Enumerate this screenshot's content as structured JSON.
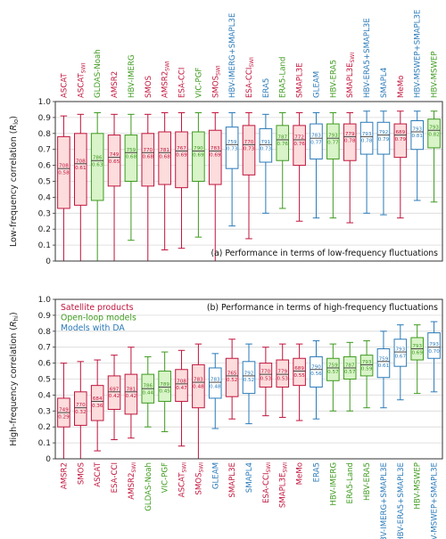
{
  "colors": {
    "satellite": "#c0143c",
    "satellite_fill": "#fcdcdc",
    "openloop": "#3e9a1f",
    "openloop_fill": "#d8f4c8",
    "da": "#2a7ab8",
    "da_fill": "#ffffff",
    "grid": "#d8d8d8",
    "median": "#333333"
  },
  "chart_data": [
    {
      "type": "box",
      "annotation": "(a) Performance in terms of low-frequency fluctuations",
      "ylabel": "Low-frequency correlation (R_lo)",
      "ylim": [
        0,
        1
      ],
      "yticks": [
        "0",
        "0.1",
        "0.2",
        "0.3",
        "0.4",
        "0.5",
        "0.6",
        "0.7",
        "0.8",
        "0.9",
        "1.0"
      ],
      "grid": true,
      "category_position": "top",
      "boxes": [
        {
          "label": "ASCAT",
          "sub": "",
          "group": "satellite",
          "n": "708",
          "median": "0.58",
          "min": 0.0,
          "q1": 0.33,
          "med": 0.58,
          "q3": 0.78,
          "max": 0.91
        },
        {
          "label": "ASCAT",
          "sub": "SWI",
          "group": "satellite",
          "n": "708",
          "median": "0.61",
          "min": 0.0,
          "q1": 0.35,
          "med": 0.61,
          "q3": 0.8,
          "max": 0.92
        },
        {
          "label": "GLDAS-Noah",
          "sub": "",
          "group": "openloop",
          "n": "786",
          "median": "0.63",
          "min": 0.0,
          "q1": 0.38,
          "med": 0.63,
          "q3": 0.8,
          "max": 0.93
        },
        {
          "label": "AMSR2",
          "sub": "",
          "group": "satellite",
          "n": "749",
          "median": "0.65",
          "min": 0.0,
          "q1": 0.47,
          "med": 0.65,
          "q3": 0.79,
          "max": 0.92
        },
        {
          "label": "HBV-IMERG",
          "sub": "",
          "group": "openloop",
          "n": "759",
          "median": "0.68",
          "min": 0.13,
          "q1": 0.5,
          "med": 0.68,
          "q3": 0.79,
          "max": 0.92
        },
        {
          "label": "SMOS",
          "sub": "",
          "group": "satellite",
          "n": "770",
          "median": "0.68",
          "min": 0.0,
          "q1": 0.47,
          "med": 0.68,
          "q3": 0.8,
          "max": 0.92
        },
        {
          "label": "AMSR2",
          "sub": "SWI",
          "group": "satellite",
          "n": "781",
          "median": "0.68",
          "min": 0.07,
          "q1": 0.48,
          "med": 0.68,
          "q3": 0.81,
          "max": 0.93
        },
        {
          "label": "ESA-CCI",
          "sub": "",
          "group": "satellite",
          "n": "767",
          "median": "0.69",
          "min": 0.08,
          "q1": 0.46,
          "med": 0.69,
          "q3": 0.81,
          "max": 0.93
        },
        {
          "label": "VIC-PGF",
          "sub": "",
          "group": "openloop",
          "n": "790",
          "median": "0.69",
          "min": 0.15,
          "q1": 0.5,
          "med": 0.69,
          "q3": 0.81,
          "max": 0.93
        },
        {
          "label": "SMOS",
          "sub": "SWI",
          "group": "satellite",
          "n": "783",
          "median": "0.69",
          "min": 0.0,
          "q1": 0.48,
          "med": 0.69,
          "q3": 0.82,
          "max": 0.93
        },
        {
          "label": "HBV-IMERG+SMAPL3E",
          "sub": "",
          "group": "da",
          "n": "759",
          "median": "0.73",
          "min": 0.22,
          "q1": 0.58,
          "med": 0.73,
          "q3": 0.84,
          "max": 0.93
        },
        {
          "label": "ESA-CCI",
          "sub": "SWI",
          "group": "satellite",
          "n": "770",
          "median": "0.73",
          "min": 0.14,
          "q1": 0.54,
          "med": 0.73,
          "q3": 0.85,
          "max": 0.93
        },
        {
          "label": "ERA5",
          "sub": "",
          "group": "da",
          "n": "791",
          "median": "0.73",
          "min": 0.3,
          "q1": 0.62,
          "med": 0.73,
          "q3": 0.83,
          "max": 0.92
        },
        {
          "label": "ERA5-Land",
          "sub": "",
          "group": "openloop",
          "n": "787",
          "median": "0.76",
          "min": 0.33,
          "q1": 0.63,
          "med": 0.76,
          "q3": 0.85,
          "max": 0.93
        },
        {
          "label": "SMAPL3E",
          "sub": "",
          "group": "satellite",
          "n": "772",
          "median": "0.76",
          "min": 0.25,
          "q1": 0.6,
          "med": 0.76,
          "q3": 0.85,
          "max": 0.93
        },
        {
          "label": "GLEAM",
          "sub": "",
          "group": "da",
          "n": "783",
          "median": "0.77",
          "min": 0.27,
          "q1": 0.64,
          "med": 0.77,
          "q3": 0.86,
          "max": 0.93
        },
        {
          "label": "HBV-ERA5",
          "sub": "",
          "group": "openloop",
          "n": "793",
          "median": "0.77",
          "min": 0.27,
          "q1": 0.64,
          "med": 0.77,
          "q3": 0.86,
          "max": 0.93
        },
        {
          "label": "SMAPL3E",
          "sub": "SWI",
          "group": "satellite",
          "n": "779",
          "median": "0.78",
          "min": 0.24,
          "q1": 0.63,
          "med": 0.78,
          "q3": 0.86,
          "max": 0.93
        },
        {
          "label": "HBV-ERA5+SMAPL3E",
          "sub": "",
          "group": "da",
          "n": "793",
          "median": "0.78",
          "min": 0.3,
          "q1": 0.67,
          "med": 0.78,
          "q3": 0.87,
          "max": 0.94
        },
        {
          "label": "SMAPL4",
          "sub": "",
          "group": "da",
          "n": "792",
          "median": "0.79",
          "min": 0.29,
          "q1": 0.67,
          "med": 0.79,
          "q3": 0.87,
          "max": 0.94
        },
        {
          "label": "MeMo",
          "sub": "",
          "group": "satellite",
          "n": "689",
          "median": "0.79",
          "min": 0.27,
          "q1": 0.65,
          "med": 0.79,
          "q3": 0.86,
          "max": 0.94
        },
        {
          "label": "HBV-MSWEP+SMAPL3E",
          "sub": "",
          "group": "da",
          "n": "793",
          "median": "0.81",
          "min": 0.38,
          "q1": 0.7,
          "med": 0.81,
          "q3": 0.88,
          "max": 0.94
        },
        {
          "label": "HBV-MSWEP",
          "sub": "",
          "group": "openloop",
          "n": "793",
          "median": "0.82",
          "min": 0.37,
          "q1": 0.71,
          "med": 0.82,
          "q3": 0.89,
          "max": 0.94
        }
      ]
    },
    {
      "type": "box",
      "annotation": "(b) Performance in terms of high-frequency fluctuations",
      "ylabel": "High-frequency correlation (R_hi)",
      "ylim": [
        0,
        1
      ],
      "yticks": [
        "0",
        "0.1",
        "0.2",
        "0.3",
        "0.4",
        "0.5",
        "0.6",
        "0.7",
        "0.8",
        "0.9",
        "1.0"
      ],
      "grid": true,
      "category_position": "bottom",
      "legend": [
        {
          "label": "Satellite products",
          "group": "satellite"
        },
        {
          "label": "Open-loop models",
          "group": "openloop"
        },
        {
          "label": "Models with DA",
          "group": "da"
        }
      ],
      "boxes": [
        {
          "label": "AMSR2",
          "sub": "",
          "group": "satellite",
          "n": "749",
          "median": "0.29",
          "min": 0.0,
          "q1": 0.2,
          "med": 0.29,
          "q3": 0.38,
          "max": 0.6
        },
        {
          "label": "SMOS",
          "sub": "",
          "group": "satellite",
          "n": "770",
          "median": "0.32",
          "min": 0.0,
          "q1": 0.21,
          "med": 0.32,
          "q3": 0.42,
          "max": 0.61
        },
        {
          "label": "ASCAT",
          "sub": "",
          "group": "satellite",
          "n": "684",
          "median": "0.36",
          "min": 0.05,
          "q1": 0.24,
          "med": 0.36,
          "q3": 0.46,
          "max": 0.62
        },
        {
          "label": "ESA-CCI",
          "sub": "",
          "group": "satellite",
          "n": "697",
          "median": "0.42",
          "min": 0.12,
          "q1": 0.31,
          "med": 0.42,
          "q3": 0.52,
          "max": 0.65
        },
        {
          "label": "AMSR2",
          "sub": "SWI",
          "group": "satellite",
          "n": "781",
          "median": "0.42",
          "min": 0.13,
          "q1": 0.28,
          "med": 0.42,
          "q3": 0.53,
          "max": 0.7
        },
        {
          "label": "GLDAS-Noah",
          "sub": "",
          "group": "openloop",
          "n": "786",
          "median": "0.44",
          "min": 0.2,
          "q1": 0.35,
          "med": 0.44,
          "q3": 0.53,
          "max": 0.64
        },
        {
          "label": "VIC-PGF",
          "sub": "",
          "group": "openloop",
          "n": "789",
          "median": "0.45",
          "min": 0.17,
          "q1": 0.36,
          "med": 0.45,
          "q3": 0.55,
          "max": 0.67
        },
        {
          "label": "ASCAT",
          "sub": "SWI",
          "group": "satellite",
          "n": "708",
          "median": "0.47",
          "min": 0.08,
          "q1": 0.36,
          "med": 0.47,
          "q3": 0.56,
          "max": 0.68
        },
        {
          "label": "SMOS",
          "sub": "SWI",
          "group": "satellite",
          "n": "783",
          "median": "0.48",
          "min": 0.0,
          "q1": 0.32,
          "med": 0.48,
          "q3": 0.59,
          "max": 0.72
        },
        {
          "label": "GLEAM",
          "sub": "",
          "group": "da",
          "n": "783",
          "median": "0.48",
          "min": 0.19,
          "q1": 0.38,
          "med": 0.48,
          "q3": 0.57,
          "max": 0.66
        },
        {
          "label": "SMAPL3E",
          "sub": "",
          "group": "satellite",
          "n": "765",
          "median": "0.52",
          "min": 0.25,
          "q1": 0.39,
          "med": 0.52,
          "q3": 0.63,
          "max": 0.75
        },
        {
          "label": "SMAPL4",
          "sub": "",
          "group": "da",
          "n": "792",
          "median": "0.52",
          "min": 0.22,
          "q1": 0.41,
          "med": 0.52,
          "q3": 0.61,
          "max": 0.72
        },
        {
          "label": "ESA-CCI",
          "sub": "SWI",
          "group": "satellite",
          "n": "770",
          "median": "0.53",
          "min": 0.27,
          "q1": 0.45,
          "med": 0.53,
          "q3": 0.6,
          "max": 0.7
        },
        {
          "label": "SMAPL3E",
          "sub": "SWI",
          "group": "satellite",
          "n": "779",
          "median": "0.53",
          "min": 0.26,
          "q1": 0.45,
          "med": 0.53,
          "q3": 0.62,
          "max": 0.72
        },
        {
          "label": "MeMo",
          "sub": "",
          "group": "satellite",
          "n": "689",
          "median": "0.55",
          "min": 0.24,
          "q1": 0.46,
          "med": 0.55,
          "q3": 0.63,
          "max": 0.72
        },
        {
          "label": "ERA5",
          "sub": "",
          "group": "da",
          "n": "790",
          "median": "0.56",
          "min": 0.25,
          "q1": 0.45,
          "med": 0.56,
          "q3": 0.64,
          "max": 0.74
        },
        {
          "label": "HBV-IMERG",
          "sub": "",
          "group": "openloop",
          "n": "759",
          "median": "0.57",
          "min": 0.3,
          "q1": 0.49,
          "med": 0.57,
          "q3": 0.63,
          "max": 0.72
        },
        {
          "label": "ERA5-Land",
          "sub": "",
          "group": "openloop",
          "n": "787",
          "median": "0.57",
          "min": 0.3,
          "q1": 0.5,
          "med": 0.57,
          "q3": 0.64,
          "max": 0.73
        },
        {
          "label": "HBV-ERA5",
          "sub": "",
          "group": "openloop",
          "n": "793",
          "median": "0.59",
          "min": 0.32,
          "q1": 0.52,
          "med": 0.59,
          "q3": 0.65,
          "max": 0.74
        },
        {
          "label": "HBV-IMERG+SMAPL3E",
          "sub": "",
          "group": "da",
          "n": "759",
          "median": "0.61",
          "min": 0.32,
          "q1": 0.51,
          "med": 0.61,
          "q3": 0.69,
          "max": 0.8
        },
        {
          "label": "HBV-ERA5+SMAPL3E",
          "sub": "",
          "group": "da",
          "n": "793",
          "median": "0.67",
          "min": 0.37,
          "q1": 0.58,
          "med": 0.67,
          "q3": 0.75,
          "max": 0.84
        },
        {
          "label": "HBV-MSWEP",
          "sub": "",
          "group": "openloop",
          "n": "793",
          "median": "0.69",
          "min": 0.41,
          "q1": 0.62,
          "med": 0.69,
          "q3": 0.76,
          "max": 0.84
        },
        {
          "label": "HBV-MSWEP+SMAPL3E",
          "sub": "",
          "group": "da",
          "n": "793",
          "median": "0.70",
          "min": 0.42,
          "q1": 0.63,
          "med": 0.7,
          "q3": 0.79,
          "max": 0.86
        }
      ]
    }
  ]
}
